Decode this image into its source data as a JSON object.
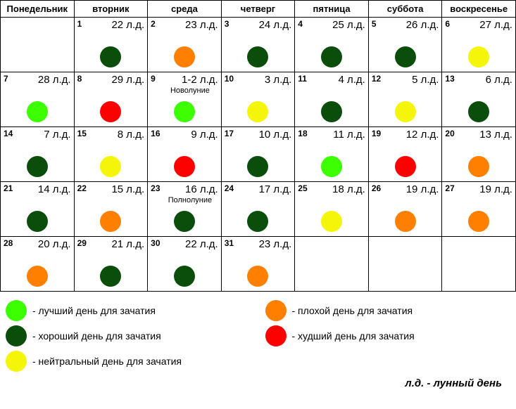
{
  "colors": {
    "best": "#3cff00",
    "good": "#0b4d0b",
    "neutral": "#f5f50a",
    "bad": "#ff7f00",
    "worst": "#ff0000"
  },
  "weekdays": [
    "Понедельник",
    "вторник",
    "среда",
    "четверг",
    "пятница",
    "суббота",
    "воскресенье"
  ],
  "weeks": [
    [
      {
        "empty": true
      },
      {
        "day": "1",
        "lunar": "22 л.д.",
        "color": "good"
      },
      {
        "day": "2",
        "lunar": "23 л.д.",
        "color": "bad"
      },
      {
        "day": "3",
        "lunar": "24 л.д.",
        "color": "good"
      },
      {
        "day": "4",
        "lunar": "25 л.д.",
        "color": "good"
      },
      {
        "day": "5",
        "lunar": "26 л.д.",
        "color": "good"
      },
      {
        "day": "6",
        "lunar": "27 л.д.",
        "color": "neutral"
      }
    ],
    [
      {
        "day": "7",
        "lunar": "28 л.д.",
        "color": "best"
      },
      {
        "day": "8",
        "lunar": "29 л.д.",
        "color": "worst"
      },
      {
        "day": "9",
        "lunar": "1-2 л.д.",
        "note": "Новолуние",
        "color": "best"
      },
      {
        "day": "10",
        "lunar": "3 л.д.",
        "color": "neutral"
      },
      {
        "day": "11",
        "lunar": "4 л.д.",
        "color": "good"
      },
      {
        "day": "12",
        "lunar": "5 л.д.",
        "color": "neutral"
      },
      {
        "day": "13",
        "lunar": "6 л.д.",
        "color": "good"
      }
    ],
    [
      {
        "day": "14",
        "lunar": "7 л.д.",
        "color": "good"
      },
      {
        "day": "15",
        "lunar": "8 л.д.",
        "color": "neutral"
      },
      {
        "day": "16",
        "lunar": "9 л.д.",
        "color": "worst"
      },
      {
        "day": "17",
        "lunar": "10 л.д.",
        "color": "good"
      },
      {
        "day": "18",
        "lunar": "11 л.д.",
        "color": "best"
      },
      {
        "day": "19",
        "lunar": "12 л.д.",
        "color": "worst"
      },
      {
        "day": "20",
        "lunar": "13 л.д.",
        "color": "bad"
      }
    ],
    [
      {
        "day": "21",
        "lunar": "14 л.д.",
        "color": "good"
      },
      {
        "day": "22",
        "lunar": "15 л.д.",
        "color": "bad"
      },
      {
        "day": "23",
        "lunar": "16 л.д.",
        "note": "Полнолуние",
        "color": "good"
      },
      {
        "day": "24",
        "lunar": "17 л.д.",
        "color": "good"
      },
      {
        "day": "25",
        "lunar": "18 л.д.",
        "color": "neutral"
      },
      {
        "day": "26",
        "lunar": "19 л.д.",
        "color": "bad"
      },
      {
        "day": "27",
        "lunar": "19 л.д.",
        "color": "bad"
      }
    ],
    [
      {
        "day": "28",
        "lunar": "20 л.д.",
        "color": "bad"
      },
      {
        "day": "29",
        "lunar": "21 л.д.",
        "color": "good"
      },
      {
        "day": "30",
        "lunar": "22 л.д.",
        "color": "good"
      },
      {
        "day": "31",
        "lunar": "23 л.д.",
        "color": "bad"
      },
      {
        "empty": true
      },
      {
        "empty": true
      },
      {
        "empty": true
      }
    ]
  ],
  "legend": [
    {
      "color": "best",
      "label": "- лучший день для зачатия"
    },
    {
      "color": "bad",
      "label": "- плохой день для зачатия"
    },
    {
      "color": "good",
      "label": "- хороший день для зачатия"
    },
    {
      "color": "worst",
      "label": "- худший день для зачатия"
    },
    {
      "color": "neutral",
      "label": "- нейтральный день для зачатия"
    }
  ],
  "footer": "л.д. - лунный день"
}
